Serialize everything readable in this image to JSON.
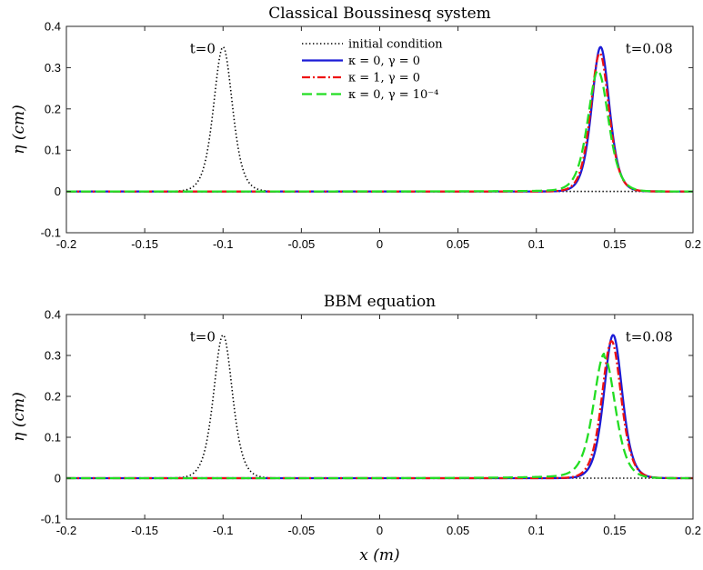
{
  "chart_data": [
    {
      "type": "line",
      "title": "Classical Boussinesq system",
      "xlabel": "",
      "ylabel": "η (cm)",
      "xlim": [
        -0.2,
        0.2
      ],
      "ylim": [
        -0.1,
        0.4
      ],
      "xticks": [
        "-0.2",
        "-0.15",
        "-0.1",
        "-0.05",
        "0",
        "0.05",
        "0.1",
        "0.15",
        "0.2"
      ],
      "yticks": [
        "-0.1",
        "0",
        "0.1",
        "0.2",
        "0.3",
        "0.4"
      ],
      "legend_position": "top-center",
      "annotations": [
        {
          "text": "t=0",
          "x": -0.113,
          "y": 0.335
        },
        {
          "text": "t=0.08",
          "x": 0.172,
          "y": 0.335
        }
      ],
      "series": [
        {
          "name": "initial condition",
          "style": "dotted",
          "color": "#000000",
          "shape": "sech2",
          "peak_x": -0.1,
          "amplitude": 0.35,
          "width": 0.008,
          "tail": 0
        },
        {
          "name": "κ = 0,  γ = 0",
          "style": "solid",
          "color": "#1b1bd6",
          "shape": "sech2",
          "peak_x": 0.141,
          "amplitude": 0.35,
          "width": 0.0075,
          "tail": 0
        },
        {
          "name": "κ = 1,  γ = 0",
          "style": "dashdot",
          "color": "#ee1111",
          "shape": "sech2",
          "peak_x": 0.1405,
          "amplitude": 0.335,
          "width": 0.0078,
          "tail": 0
        },
        {
          "name": "κ = 0,  γ = 10⁻⁴",
          "style": "dashed",
          "color": "#22dd22",
          "shape": "sech2",
          "peak_x": 0.1395,
          "amplitude": 0.29,
          "width": 0.0088,
          "tail": 0.004
        }
      ]
    },
    {
      "type": "line",
      "title": "BBM equation",
      "xlabel": "x (m)",
      "ylabel": "η (cm)",
      "xlim": [
        -0.2,
        0.2
      ],
      "ylim": [
        -0.1,
        0.4
      ],
      "xticks": [
        "-0.2",
        "-0.15",
        "-0.1",
        "-0.05",
        "0",
        "0.05",
        "0.1",
        "0.15",
        "0.2"
      ],
      "yticks": [
        "-0.1",
        "0",
        "0.1",
        "0.2",
        "0.3",
        "0.4"
      ],
      "annotations": [
        {
          "text": "t=0",
          "x": -0.113,
          "y": 0.335
        },
        {
          "text": "t=0.08",
          "x": 0.172,
          "y": 0.335
        }
      ],
      "series": [
        {
          "name": "initial condition",
          "style": "dotted",
          "color": "#000000",
          "shape": "sech2",
          "peak_x": -0.1,
          "amplitude": 0.35,
          "width": 0.008,
          "tail": 0
        },
        {
          "name": "κ = 0,  γ = 0",
          "style": "solid",
          "color": "#1b1bd6",
          "shape": "sech2",
          "peak_x": 0.149,
          "amplitude": 0.35,
          "width": 0.0078,
          "tail": 0
        },
        {
          "name": "κ = 1,  γ = 0",
          "style": "dashdot",
          "color": "#ee1111",
          "shape": "sech2",
          "peak_x": 0.148,
          "amplitude": 0.335,
          "width": 0.0082,
          "tail": 0
        },
        {
          "name": "κ = 0,  γ = 10⁻⁴",
          "style": "dashed",
          "color": "#22dd22",
          "shape": "sech2",
          "peak_x": 0.1435,
          "amplitude": 0.295,
          "width": 0.0092,
          "tail": 0.01
        }
      ]
    }
  ]
}
